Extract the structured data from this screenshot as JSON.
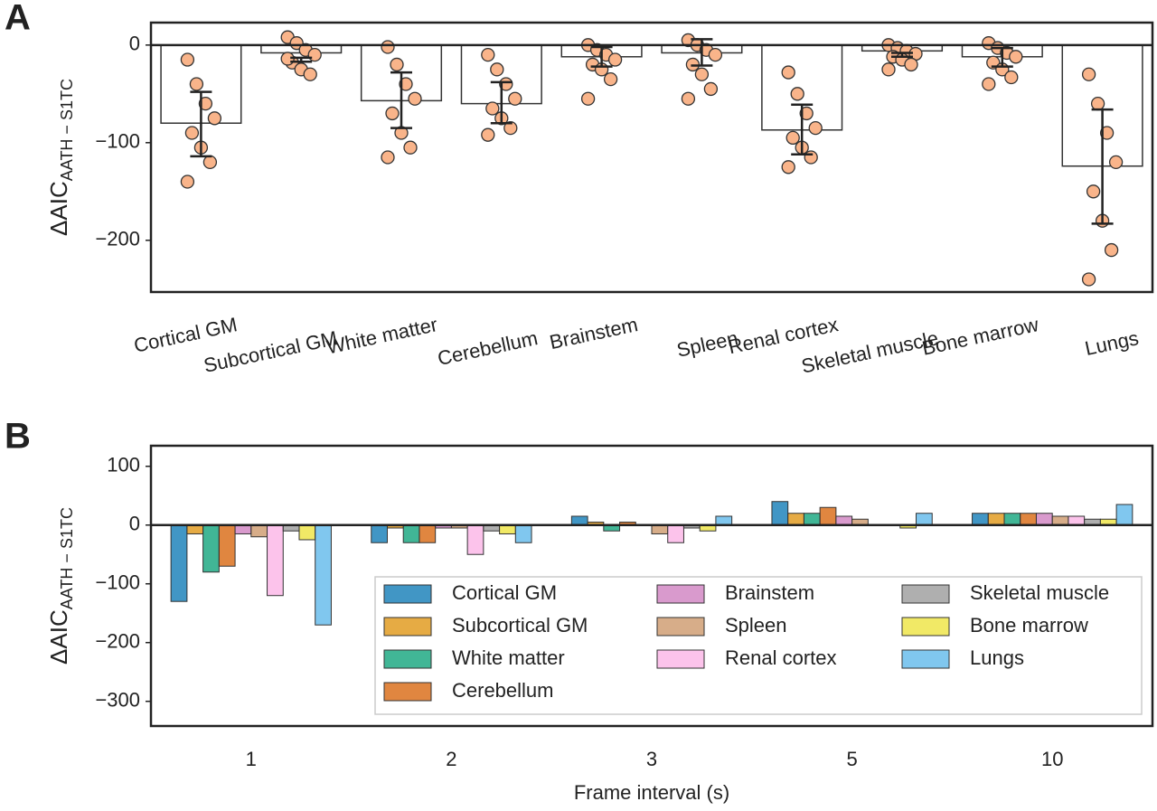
{
  "chart_data": [
    {
      "type": "bar",
      "panel": "A",
      "ylabel": "ΔAIC",
      "ylabel_sub": "AATH − S1TC",
      "categories": [
        "Cortical GM",
        "Subcortical GM",
        "White matter",
        "Cerebellum",
        "Brainstem",
        "Spleen",
        "Renal cortex",
        "Skeletal muscle",
        "Bone marrow",
        "Lungs"
      ],
      "values": [
        -80,
        -8,
        -57,
        -60,
        -12,
        -8,
        -87,
        -6,
        -12,
        -124
      ],
      "err_low": [
        -114,
        -17,
        -85,
        -80,
        -22,
        -21,
        -112,
        -12,
        -22,
        -183
      ],
      "err_high": [
        -48,
        -13,
        -28,
        -38,
        -2,
        6,
        -61,
        -8,
        -3,
        -66
      ],
      "points": [
        [
          -15,
          -40,
          -60,
          -75,
          -90,
          -105,
          -120,
          -140
        ],
        [
          8,
          2,
          -5,
          -10,
          -18,
          -25,
          -30,
          -14
        ],
        [
          -2,
          -20,
          -40,
          -55,
          -70,
          -90,
          -105,
          -115
        ],
        [
          -10,
          -25,
          -40,
          -55,
          -65,
          -75,
          -85,
          -92
        ],
        [
          0,
          -5,
          -10,
          -15,
          -20,
          -25,
          -35,
          -55
        ],
        [
          5,
          0,
          -5,
          -10,
          -20,
          -30,
          -45,
          -55
        ],
        [
          -28,
          -50,
          -70,
          -85,
          -95,
          -105,
          -115,
          -125
        ],
        [
          0,
          -3,
          -6,
          -9,
          -12,
          -15,
          -20,
          -25
        ],
        [
          2,
          -3,
          -8,
          -12,
          -18,
          -25,
          -33,
          -40
        ],
        [
          -30,
          -60,
          -90,
          -120,
          -150,
          -180,
          -210,
          -240
        ]
      ],
      "bar_color": "#ffffff",
      "point_color": "#f9b48a",
      "ylim": [
        -253,
        23
      ],
      "yticks": [
        {
          "value": -200,
          "label": "−200"
        },
        {
          "value": -100,
          "label": "−100"
        },
        0
      ]
    },
    {
      "type": "grouped_bar",
      "panel": "B",
      "ylabel": "ΔAIC",
      "ylabel_sub": "AATH − S1TC",
      "xlabel": "Frame interval (s)",
      "categories": [
        "1",
        "2",
        "3",
        "5",
        "10"
      ],
      "series": [
        {
          "name": "Cortical GM",
          "color": "#0173b2",
          "values": [
            -130,
            -30,
            15,
            40,
            20
          ]
        },
        {
          "name": "Subcortical GM",
          "color": "#de8f05",
          "values": [
            -15,
            -5,
            5,
            20,
            20
          ]
        },
        {
          "name": "White matter",
          "color": "#029e73",
          "values": [
            -80,
            -30,
            -10,
            20,
            20
          ]
        },
        {
          "name": "Cerebellum",
          "color": "#d55e00",
          "values": [
            -70,
            -30,
            5,
            30,
            20
          ]
        },
        {
          "name": "Brainstem",
          "color": "#cc78bc",
          "values": [
            -15,
            -5,
            0,
            15,
            20
          ]
        },
        {
          "name": "Spleen",
          "color": "#ca9161",
          "values": [
            -20,
            -5,
            -15,
            10,
            15
          ]
        },
        {
          "name": "Renal cortex",
          "color": "#fbafe4",
          "values": [
            -120,
            -50,
            -30,
            0,
            15
          ]
        },
        {
          "name": "Skeletal muscle",
          "color": "#949494",
          "values": [
            -10,
            -10,
            -5,
            0,
            10
          ]
        },
        {
          "name": "Bone marrow",
          "color": "#ece133",
          "values": [
            -25,
            -15,
            -10,
            -5,
            10
          ]
        },
        {
          "name": "Lungs",
          "color": "#56b4e9",
          "values": [
            -170,
            -30,
            15,
            20,
            35
          ]
        }
      ],
      "ylim": [
        -342,
        135
      ],
      "yticks": [
        {
          "value": -300,
          "label": "−300"
        },
        {
          "value": -200,
          "label": "−200"
        },
        {
          "value": -100,
          "label": "−100"
        },
        0,
        100
      ]
    }
  ]
}
